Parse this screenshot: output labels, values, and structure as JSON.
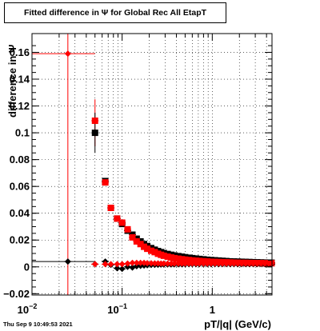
{
  "chart_data": {
    "type": "scatter",
    "title": "Fitted difference in  Ψ  for Global Rec All EtapT",
    "xlabel": "pT/|q| (GeV/c)",
    "ylabel": "difference in Ψ",
    "xscale": "log",
    "xlim": [
      0.01,
      4.6
    ],
    "ylim": [
      -0.021,
      0.174
    ],
    "grid": true,
    "x_ticks": [
      {
        "value": 0.01,
        "base": "10",
        "exp": "−2"
      },
      {
        "value": 0.1,
        "base": "10",
        "exp": "−1"
      },
      {
        "value": 1,
        "base": "1",
        "exp": ""
      }
    ],
    "y_ticks": [
      "−0.02",
      "0",
      "0.02",
      "0.04",
      "0.06",
      "0.08",
      "0.1",
      "0.12",
      "0.14",
      "0.16"
    ],
    "y_tick_values": [
      -0.02,
      0,
      0.02,
      0.04,
      0.06,
      0.08,
      0.1,
      0.12,
      0.14,
      0.16
    ],
    "series": [
      {
        "color": "#000000",
        "marker": "square",
        "x": [
          0.05,
          0.065,
          0.075,
          0.088,
          0.1,
          0.115,
          0.13,
          0.145,
          0.16,
          0.175,
          0.19,
          0.21,
          0.23,
          0.25,
          0.27,
          0.29,
          0.32,
          0.35,
          0.38,
          0.42,
          0.46,
          0.5,
          0.55,
          0.6,
          0.66,
          0.72,
          0.8,
          0.88,
          0.97,
          1.07,
          1.18,
          1.3,
          1.43,
          1.58,
          1.74,
          1.92,
          2.12,
          2.34,
          2.58,
          2.85,
          3.15,
          3.48,
          3.84,
          4.24,
          4.55
        ],
        "y": [
          0.1,
          0.064,
          0.044,
          0.036,
          0.032,
          0.027,
          0.024,
          0.021,
          0.019,
          0.017,
          0.0155,
          0.014,
          0.0128,
          0.0118,
          0.011,
          0.0103,
          0.0096,
          0.009,
          0.0085,
          0.008,
          0.0076,
          0.0072,
          0.0068,
          0.0065,
          0.0062,
          0.0059,
          0.0056,
          0.0053,
          0.0051,
          0.0049,
          0.0047,
          0.0045,
          0.0043,
          0.0041,
          0.004,
          0.0039,
          0.0038,
          0.0037,
          0.0036,
          0.0035,
          0.0034,
          0.0033,
          0.0032,
          0.0031,
          0.0031
        ]
      },
      {
        "color": "#ff0000",
        "marker": "square",
        "x": [
          0.05,
          0.065,
          0.075,
          0.088,
          0.1,
          0.115,
          0.13,
          0.145,
          0.16,
          0.175,
          0.19,
          0.21,
          0.23,
          0.25,
          0.27,
          0.29,
          0.32,
          0.35,
          0.38,
          0.42,
          0.46,
          0.5,
          0.55,
          0.6,
          0.66,
          0.72,
          0.8,
          0.88,
          0.97,
          1.07,
          1.18,
          1.3,
          1.43,
          1.58,
          1.74,
          1.92,
          2.12,
          2.34,
          2.58,
          2.85,
          3.15,
          3.48,
          3.84,
          4.24,
          4.55
        ],
        "y": [
          0.109,
          0.063,
          0.044,
          0.036,
          0.033,
          0.028,
          0.022,
          0.019,
          0.017,
          0.015,
          0.0135,
          0.012,
          0.011,
          0.0098,
          0.009,
          0.0083,
          0.0076,
          0.007,
          0.0065,
          0.0061,
          0.0057,
          0.0054,
          0.0051,
          0.0048,
          0.0046,
          0.0044,
          0.0042,
          0.004,
          0.0038,
          0.0037,
          0.0036,
          0.0035,
          0.0034,
          0.0033,
          0.0032,
          0.0031,
          0.003,
          0.003,
          0.0029,
          0.0029,
          0.0028,
          0.0028,
          0.0027,
          0.0027,
          0.0027
        ]
      },
      {
        "color": "#000000",
        "marker": "diamond",
        "x": [
          0.025,
          0.05,
          0.065,
          0.075,
          0.088,
          0.1,
          0.115,
          0.13,
          0.145,
          0.16,
          0.175,
          0.19,
          0.21,
          0.23,
          0.25,
          0.27,
          0.29,
          0.32,
          0.35,
          0.38,
          0.42,
          0.46,
          0.5,
          0.55,
          0.6,
          0.66,
          0.72,
          0.8,
          0.88,
          0.97,
          1.07,
          1.18,
          1.3,
          1.43,
          1.58,
          1.74,
          1.92,
          2.12,
          2.34,
          2.58,
          2.85,
          3.15,
          3.48,
          3.84,
          4.24,
          4.55
        ],
        "y": [
          0.004,
          0.002,
          0.004,
          0.0015,
          -0.001,
          -0.0015,
          0.0,
          -0.0005,
          0.0005,
          0.0008,
          0.001,
          0.0012,
          0.0014,
          0.0015,
          0.0016,
          0.0017,
          0.0017,
          0.0018,
          0.0018,
          0.0019,
          0.0019,
          0.0019,
          0.002,
          0.002,
          0.002,
          0.002,
          0.002,
          0.002,
          0.002,
          0.002,
          0.002,
          0.002,
          0.002,
          0.002,
          0.002,
          0.002,
          0.002,
          0.002,
          0.002,
          0.002,
          0.002,
          0.002,
          0.002,
          0.002,
          0.002,
          0.002
        ]
      },
      {
        "color": "#ff0000",
        "marker": "diamond",
        "x": [
          0.025,
          0.05,
          0.065,
          0.075,
          0.088,
          0.1,
          0.115,
          0.13,
          0.145,
          0.16,
          0.175,
          0.19,
          0.21,
          0.23,
          0.25,
          0.27,
          0.29,
          0.32,
          0.35,
          0.38,
          0.42,
          0.46,
          0.5,
          0.55,
          0.6,
          0.66,
          0.72,
          0.8,
          0.88,
          0.97,
          1.07,
          1.18,
          1.3,
          1.43,
          1.58,
          1.74,
          1.92,
          2.12,
          2.34,
          2.58,
          2.85,
          3.15,
          3.48,
          3.84,
          4.24,
          4.55
        ],
        "y": [
          0.159,
          0.002,
          0.002,
          0.002,
          0.002,
          0.002,
          0.0025,
          0.003,
          0.003,
          0.003,
          0.003,
          0.0028,
          0.0027,
          0.0026,
          0.0026,
          0.0025,
          0.0025,
          0.0025,
          0.0025,
          0.0025,
          0.0025,
          0.0025,
          0.0025,
          0.0025,
          0.0025,
          0.0025,
          0.0025,
          0.0025,
          0.0025,
          0.0025,
          0.0025,
          0.0025,
          0.0025,
          0.0025,
          0.0025,
          0.0025,
          0.0025,
          0.0025,
          0.0025,
          0.0025,
          0.0025,
          0.0025,
          0.0025,
          0.0025,
          0.0025,
          0.0025
        ]
      }
    ]
  },
  "timestamp": "Thu Sep  9 10:49:53 2021"
}
